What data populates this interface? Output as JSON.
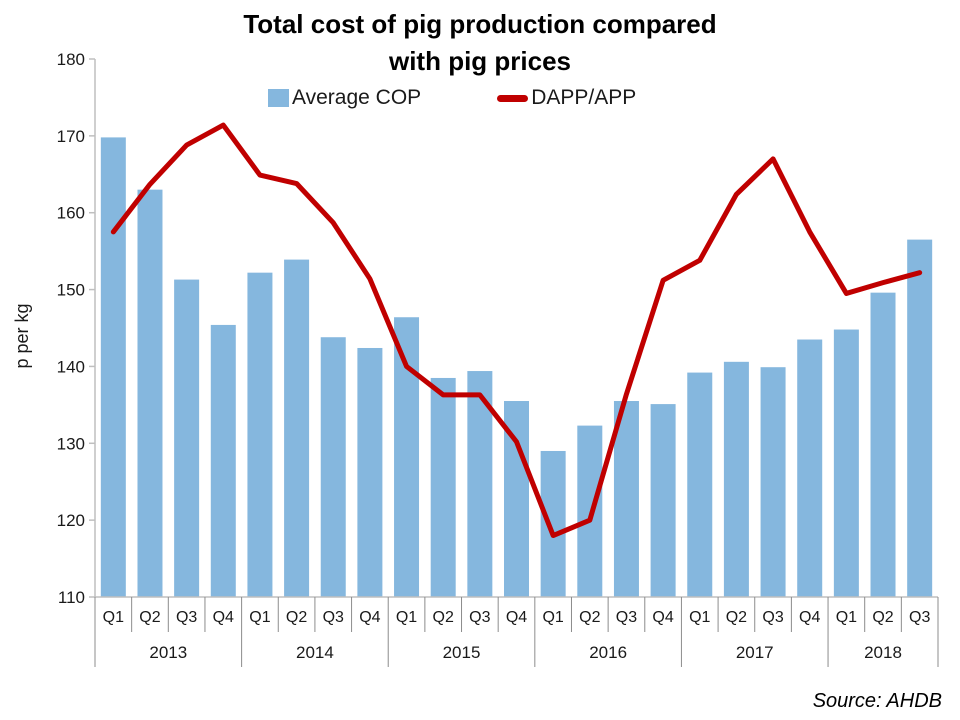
{
  "page": {
    "background": "#ffffff"
  },
  "source": {
    "label": "Source: AHDB"
  },
  "chart_data": {
    "type": "combo",
    "title": "Total cost of pig production compared with pig prices",
    "title_lines": [
      "Total cost of pig production compared",
      "with pig prices"
    ],
    "ylabel": "p per kg",
    "xlabel": "",
    "ylim": [
      110,
      180
    ],
    "yticks": [
      110,
      120,
      130,
      140,
      150,
      160,
      170,
      180
    ],
    "grid": false,
    "legend_position": "top",
    "categories": [
      "2013 Q1",
      "2013 Q2",
      "2013 Q3",
      "2013 Q4",
      "2014 Q1",
      "2014 Q2",
      "2014 Q3",
      "2014 Q4",
      "2015 Q1",
      "2015 Q2",
      "2015 Q3",
      "2015 Q4",
      "2016 Q1",
      "2016 Q2",
      "2016 Q3",
      "2016 Q4",
      "2017 Q1",
      "2017 Q2",
      "2017 Q3",
      "2017 Q4",
      "2018 Q1",
      "2018 Q2",
      "2018 Q3"
    ],
    "x_groups": [
      {
        "year": "2013",
        "quarters": [
          "Q1",
          "Q2",
          "Q3",
          "Q4"
        ]
      },
      {
        "year": "2014",
        "quarters": [
          "Q1",
          "Q2",
          "Q3",
          "Q4"
        ]
      },
      {
        "year": "2015",
        "quarters": [
          "Q1",
          "Q2",
          "Q3",
          "Q4"
        ]
      },
      {
        "year": "2016",
        "quarters": [
          "Q1",
          "Q2",
          "Q3",
          "Q4"
        ]
      },
      {
        "year": "2017",
        "quarters": [
          "Q1",
          "Q2",
          "Q3",
          "Q4"
        ]
      },
      {
        "year": "2018",
        "quarters": [
          "Q1",
          "Q2",
          "Q3"
        ]
      }
    ],
    "series": [
      {
        "name": "Average COP",
        "type": "bar",
        "color": "#85B7DE",
        "values": [
          169.8,
          163.0,
          151.3,
          145.4,
          152.2,
          153.9,
          143.8,
          142.4,
          146.4,
          138.5,
          139.4,
          135.5,
          129.0,
          132.3,
          135.5,
          135.1,
          139.2,
          140.6,
          139.9,
          143.5,
          144.8,
          149.6,
          156.5
        ]
      },
      {
        "name": "DAPP/APP",
        "type": "line",
        "color": "#C00000",
        "values": [
          157.5,
          163.7,
          168.8,
          171.4,
          164.9,
          163.8,
          158.7,
          151.4,
          140.0,
          136.3,
          136.3,
          130.2,
          118.0,
          120.0,
          136.4,
          151.2,
          153.8,
          162.4,
          167.0,
          157.5,
          149.5,
          150.9,
          152.2
        ]
      }
    ],
    "axis_colors": {
      "axis_line": "#BFBFBF",
      "separator_line": "#8C8C8C",
      "tick_text": "#1a1a1a"
    }
  }
}
